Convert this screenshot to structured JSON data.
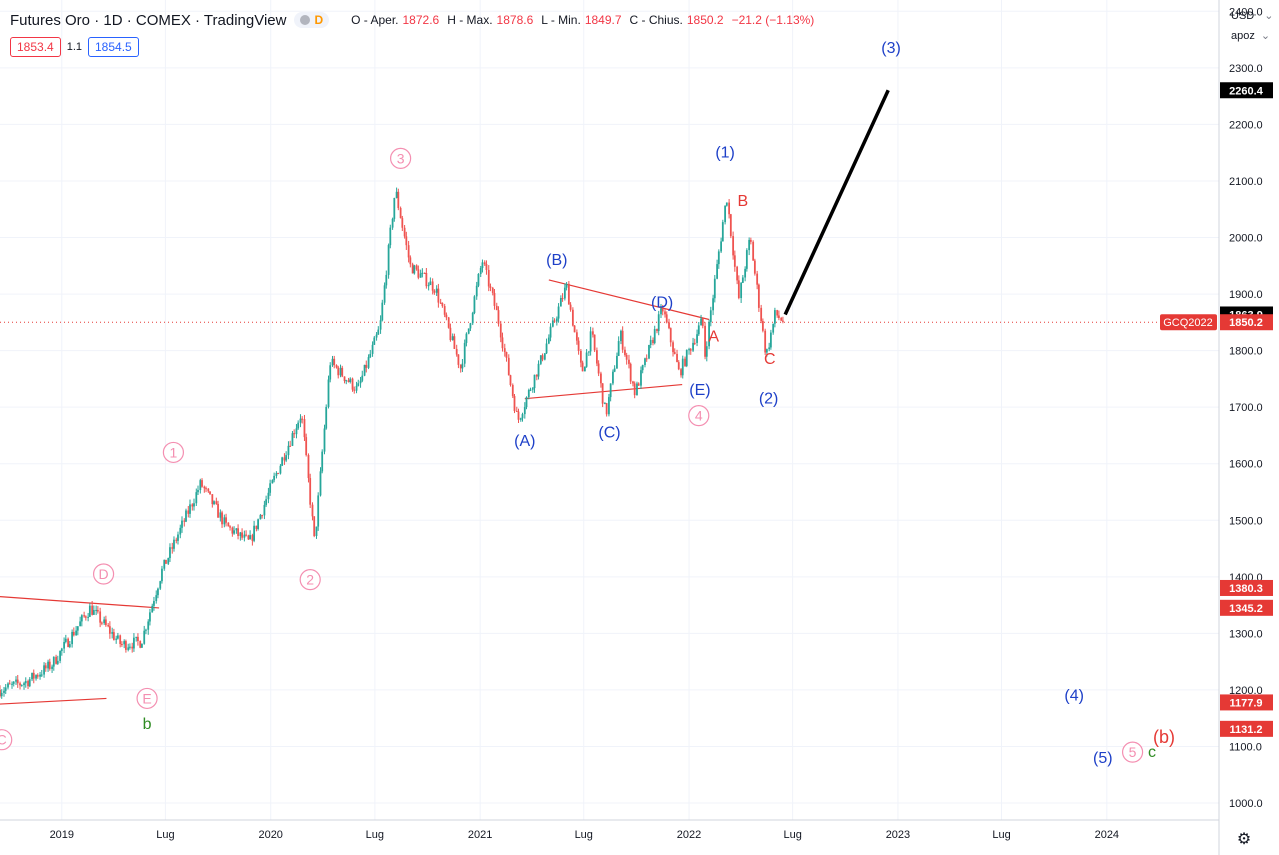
{
  "header": {
    "symbol": "Futures Oro · 1D · COMEX · TradingView",
    "delay_badge": "D",
    "ohlc": {
      "open_label": "O - Aper.",
      "open": "1872.6",
      "high_label": "H - Max.",
      "high": "1878.6",
      "low_label": "L - Min.",
      "low": "1849.7",
      "close_label": "C - Chius.",
      "close": "1850.2",
      "change": "−21.2 (−1.13%)"
    },
    "bid": "1853.4",
    "spread": "1.1",
    "ask": "1854.5"
  },
  "axis_controls": {
    "currency": "USD",
    "unit": "apoz"
  },
  "colors": {
    "up": "#26a69a",
    "down": "#ef5350",
    "pink": "#f48fb1",
    "blue": "#1e40c8",
    "red": "#e53935",
    "green": "#2e8b22",
    "black": "#000000"
  },
  "chart_data": {
    "type": "line",
    "title": "Futures Oro · 1D · COMEX · TradingView",
    "ylim": [
      970,
      2420
    ],
    "y_ticks": [
      1000,
      1100,
      1200,
      1300,
      1400,
      1500,
      1600,
      1700,
      1800,
      1900,
      2000,
      2100,
      2200,
      2300,
      2400
    ],
    "x_ticks": [
      {
        "label": "2019",
        "date": "2019-01-01"
      },
      {
        "label": "Lug",
        "date": "2019-07-01"
      },
      {
        "label": "2020",
        "date": "2020-01-01"
      },
      {
        "label": "Lug",
        "date": "2020-07-01"
      },
      {
        "label": "2021",
        "date": "2021-01-01"
      },
      {
        "label": "Lug",
        "date": "2021-07-01"
      },
      {
        "label": "2022",
        "date": "2022-01-01"
      },
      {
        "label": "Lug",
        "date": "2022-07-01"
      },
      {
        "label": "2023",
        "date": "2023-01-01"
      },
      {
        "label": "Lug",
        "date": "2023-07-01"
      },
      {
        "label": "2024",
        "date": "2024-01-01"
      }
    ],
    "xlim": [
      "2018-09-15",
      "2024-07-15"
    ],
    "series": [
      {
        "values": [
          {
            "x": "2018-09-15",
            "y": 1200
          },
          {
            "x": "2018-11-01",
            "y": 1215
          },
          {
            "x": "2018-12-15",
            "y": 1245
          },
          {
            "x": "2019-02-20",
            "y": 1345
          },
          {
            "x": "2019-04-15",
            "y": 1280
          },
          {
            "x": "2019-05-20",
            "y": 1285
          },
          {
            "x": "2019-06-25",
            "y": 1410
          },
          {
            "x": "2019-09-01",
            "y": 1565
          },
          {
            "x": "2019-10-15",
            "y": 1490
          },
          {
            "x": "2019-11-25",
            "y": 1460
          },
          {
            "x": "2020-01-10",
            "y": 1580
          },
          {
            "x": "2020-02-24",
            "y": 1690
          },
          {
            "x": "2020-03-18",
            "y": 1460
          },
          {
            "x": "2020-04-14",
            "y": 1780
          },
          {
            "x": "2020-06-01",
            "y": 1730
          },
          {
            "x": "2020-07-10",
            "y": 1840
          },
          {
            "x": "2020-08-06",
            "y": 2085
          },
          {
            "x": "2020-09-01",
            "y": 1950
          },
          {
            "x": "2020-10-15",
            "y": 1910
          },
          {
            "x": "2020-11-28",
            "y": 1770
          },
          {
            "x": "2021-01-05",
            "y": 1960
          },
          {
            "x": "2021-02-01",
            "y": 1860
          },
          {
            "x": "2021-03-08",
            "y": 1675
          },
          {
            "x": "2021-04-20",
            "y": 1790
          },
          {
            "x": "2021-06-01",
            "y": 1915
          },
          {
            "x": "2021-06-28",
            "y": 1760
          },
          {
            "x": "2021-07-15",
            "y": 1830
          },
          {
            "x": "2021-08-09",
            "y": 1685
          },
          {
            "x": "2021-09-03",
            "y": 1830
          },
          {
            "x": "2021-09-29",
            "y": 1725
          },
          {
            "x": "2021-11-16",
            "y": 1875
          },
          {
            "x": "2021-12-15",
            "y": 1760
          },
          {
            "x": "2022-01-25",
            "y": 1855
          },
          {
            "x": "2022-01-28",
            "y": 1785
          },
          {
            "x": "2022-03-08",
            "y": 2075
          },
          {
            "x": "2022-03-29",
            "y": 1890
          },
          {
            "x": "2022-04-18",
            "y": 2000
          },
          {
            "x": "2022-05-16",
            "y": 1790
          },
          {
            "x": "2022-06-01",
            "y": 1865
          },
          {
            "x": "2022-06-17",
            "y": 1850
          }
        ]
      }
    ],
    "projection": [
      {
        "x": "2022-06-18",
        "y": 1863.9
      },
      {
        "x": "2022-12-15",
        "y": 2260.4
      }
    ],
    "reference_line": {
      "label": "GCQ2022",
      "y": 1850.2
    },
    "axis_labels": [
      {
        "value": "2260.4",
        "color": "black"
      },
      {
        "value": "1863.9",
        "color": "black"
      },
      {
        "value": "1850.2",
        "color": "red"
      },
      {
        "value": "1380.3",
        "color": "red"
      },
      {
        "value": "1345.2",
        "color": "red"
      },
      {
        "value": "1177.9",
        "color": "red"
      },
      {
        "value": "1131.2",
        "color": "red"
      }
    ],
    "trendlines": [
      {
        "from": {
          "x": "2018-09-15",
          "y": 1365
        },
        "to": {
          "x": "2019-06-20",
          "y": 1345
        }
      },
      {
        "from": {
          "x": "2018-09-15",
          "y": 1175
        },
        "to": {
          "x": "2019-03-20",
          "y": 1185
        }
      },
      {
        "from": {
          "x": "2021-05-01",
          "y": 1925
        },
        "to": {
          "x": "2022-02-05",
          "y": 1855
        }
      },
      {
        "from": {
          "x": "2021-03-20",
          "y": 1715
        },
        "to": {
          "x": "2021-12-20",
          "y": 1740
        }
      }
    ],
    "annotations": [
      {
        "text": "C",
        "x": "2018-09-18",
        "y": 1112,
        "style": "pink-circle"
      },
      {
        "text": "D",
        "x": "2019-03-15",
        "y": 1405,
        "style": "pink-circle"
      },
      {
        "text": "E",
        "x": "2019-05-30",
        "y": 1185,
        "style": "pink-circle"
      },
      {
        "text": "b",
        "x": "2019-05-30",
        "y": 1140,
        "style": "green"
      },
      {
        "text": "1",
        "x": "2019-07-15",
        "y": 1620,
        "style": "pink-circle"
      },
      {
        "text": "2",
        "x": "2020-03-10",
        "y": 1395,
        "style": "pink-circle"
      },
      {
        "text": "3",
        "x": "2020-08-15",
        "y": 2140,
        "style": "pink-circle"
      },
      {
        "text": "4",
        "x": "2022-01-18",
        "y": 1685,
        "style": "pink-circle"
      },
      {
        "text": "5",
        "x": "2024-02-15",
        "y": 1090,
        "style": "pink-circle"
      },
      {
        "text": "(A)",
        "x": "2021-03-20",
        "y": 1640,
        "style": "blue"
      },
      {
        "text": "(B)",
        "x": "2021-05-15",
        "y": 1960,
        "style": "blue"
      },
      {
        "text": "(C)",
        "x": "2021-08-15",
        "y": 1655,
        "style": "blue"
      },
      {
        "text": "(D)",
        "x": "2021-11-15",
        "y": 1885,
        "style": "blue"
      },
      {
        "text": "(E)",
        "x": "2022-01-20",
        "y": 1730,
        "style": "blue"
      },
      {
        "text": "(1)",
        "x": "2022-03-05",
        "y": 2150,
        "style": "blue"
      },
      {
        "text": "(2)",
        "x": "2022-05-20",
        "y": 1715,
        "style": "blue"
      },
      {
        "text": "(3)",
        "x": "2022-12-20",
        "y": 2335,
        "style": "blue"
      },
      {
        "text": "(4)",
        "x": "2023-11-05",
        "y": 1190,
        "style": "blue"
      },
      {
        "text": "(5)",
        "x": "2023-12-25",
        "y": 1080,
        "style": "blue"
      },
      {
        "text": "A",
        "x": "2022-02-13",
        "y": 1825,
        "style": "red"
      },
      {
        "text": "B",
        "x": "2022-04-05",
        "y": 2065,
        "style": "red"
      },
      {
        "text": "C",
        "x": "2022-05-22",
        "y": 1785,
        "style": "red"
      },
      {
        "text": "c",
        "x": "2024-03-20",
        "y": 1090,
        "style": "green"
      },
      {
        "text": "(b)",
        "x": "2024-04-10",
        "y": 1115,
        "style": "red"
      }
    ]
  }
}
